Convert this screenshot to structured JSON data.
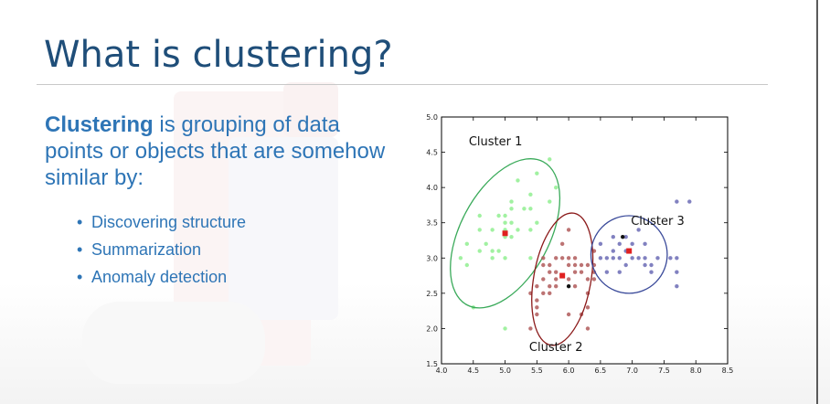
{
  "slide": {
    "title": "What is clustering?",
    "intro_bold": "Clustering",
    "intro_rest": " is grouping of data points or objects that are somehow similar by:",
    "bullets": [
      {
        "symbol": "•",
        "text": "Discovering structure"
      },
      {
        "symbol": "•",
        "text": "Summarization"
      },
      {
        "symbol": "•",
        "text": "Anomaly detection"
      }
    ]
  },
  "colors": {
    "title": "#1f4e79",
    "body_text": "#2e75b6",
    "cluster1_points": "#90ee90",
    "cluster2_points": "#b05a5a",
    "cluster3_points": "#6b6bb5",
    "cluster1_ellipse": "#3aaa5a",
    "cluster2_ellipse": "#8b1a1a",
    "cluster3_ellipse": "#3a4a9a",
    "centroid": "#e02020"
  },
  "chart_data": {
    "type": "scatter",
    "xlim": [
      4.0,
      8.5
    ],
    "ylim": [
      1.5,
      5.0
    ],
    "x_ticks": [
      "4.0",
      "4.5",
      "5.0",
      "5.5",
      "6.0",
      "6.5",
      "7.0",
      "7.5",
      "8.0",
      "8.5"
    ],
    "y_ticks": [
      "1.5",
      "2.0",
      "2.5",
      "3.0",
      "3.5",
      "4.0",
      "4.5",
      "5.0"
    ],
    "grid": false,
    "clusters": [
      {
        "name": "Cluster 1",
        "color": "#90ee90",
        "centroid": [
          5.0,
          3.35
        ],
        "label_at": [
          4.85,
          4.6
        ],
        "ellipse": {
          "cx": 5.0,
          "cy": 3.35,
          "rx": 0.7,
          "ry": 1.15,
          "rotate_deg": 28
        },
        "points": [
          [
            4.3,
            3.0
          ],
          [
            4.4,
            2.9
          ],
          [
            4.4,
            3.2
          ],
          [
            4.5,
            2.3
          ],
          [
            4.6,
            3.1
          ],
          [
            4.6,
            3.4
          ],
          [
            4.6,
            3.6
          ],
          [
            4.7,
            3.2
          ],
          [
            4.8,
            3.0
          ],
          [
            4.8,
            3.4
          ],
          [
            4.8,
            3.1
          ],
          [
            4.9,
            3.1
          ],
          [
            4.9,
            3.6
          ],
          [
            5.0,
            3.0
          ],
          [
            5.0,
            3.4
          ],
          [
            5.0,
            3.5
          ],
          [
            5.0,
            3.6
          ],
          [
            5.0,
            3.3
          ],
          [
            5.1,
            3.5
          ],
          [
            5.1,
            3.8
          ],
          [
            5.1,
            3.7
          ],
          [
            5.1,
            3.3
          ],
          [
            5.2,
            3.4
          ],
          [
            5.2,
            4.1
          ],
          [
            5.3,
            3.7
          ],
          [
            5.4,
            3.9
          ],
          [
            5.4,
            3.4
          ],
          [
            5.4,
            3.7
          ],
          [
            5.5,
            3.5
          ],
          [
            5.5,
            4.2
          ],
          [
            5.7,
            3.8
          ],
          [
            5.7,
            4.4
          ],
          [
            5.8,
            4.0
          ],
          [
            5.0,
            2.0
          ],
          [
            5.4,
            3.0
          ]
        ]
      },
      {
        "name": "Cluster 2",
        "color": "#b05a5a",
        "centroid": [
          5.9,
          2.75
        ],
        "label_at": [
          5.8,
          1.68
        ],
        "ellipse": {
          "cx": 5.9,
          "cy": 2.7,
          "rx": 0.45,
          "ry": 0.95,
          "rotate_deg": 10
        },
        "points": [
          [
            5.4,
            2.5
          ],
          [
            5.5,
            2.3
          ],
          [
            5.5,
            2.6
          ],
          [
            5.5,
            2.4
          ],
          [
            5.6,
            2.9
          ],
          [
            5.6,
            2.5
          ],
          [
            5.6,
            3.0
          ],
          [
            5.6,
            2.7
          ],
          [
            5.7,
            2.8
          ],
          [
            5.7,
            2.6
          ],
          [
            5.7,
            2.9
          ],
          [
            5.7,
            2.5
          ],
          [
            5.8,
            2.7
          ],
          [
            5.8,
            2.6
          ],
          [
            5.8,
            2.8
          ],
          [
            5.8,
            3.0
          ],
          [
            5.9,
            3.0
          ],
          [
            5.9,
            3.2
          ],
          [
            6.0,
            2.2
          ],
          [
            6.0,
            2.9
          ],
          [
            6.0,
            2.7
          ],
          [
            6.0,
            3.0
          ],
          [
            6.0,
            3.4
          ],
          [
            6.1,
            2.8
          ],
          [
            6.1,
            3.0
          ],
          [
            6.1,
            2.6
          ],
          [
            6.2,
            2.2
          ],
          [
            6.2,
            2.9
          ],
          [
            6.2,
            2.8
          ],
          [
            6.3,
            2.5
          ],
          [
            6.3,
            2.3
          ],
          [
            6.3,
            2.7
          ],
          [
            6.3,
            2.9
          ],
          [
            6.4,
            2.7
          ],
          [
            6.4,
            2.8
          ],
          [
            6.4,
            3.1
          ],
          [
            6.4,
            2.9
          ],
          [
            5.4,
            2.0
          ],
          [
            5.5,
            2.2
          ],
          [
            6.1,
            2.9
          ],
          [
            6.3,
            2.0
          ]
        ]
      },
      {
        "name": "Cluster 3",
        "color": "#6b6bb5",
        "centroid": [
          6.95,
          3.1
        ],
        "label_at": [
          7.4,
          3.47
        ],
        "ellipse": {
          "cx": 6.95,
          "cy": 3.05,
          "rx": 0.6,
          "ry": 0.55,
          "rotate_deg": 0
        },
        "points": [
          [
            6.5,
            3.0
          ],
          [
            6.5,
            3.2
          ],
          [
            6.6,
            3.0
          ],
          [
            6.7,
            3.1
          ],
          [
            6.7,
            3.3
          ],
          [
            6.7,
            3.0
          ],
          [
            6.8,
            3.2
          ],
          [
            6.8,
            2.8
          ],
          [
            6.9,
            3.1
          ],
          [
            6.9,
            2.9
          ],
          [
            7.0,
            3.2
          ],
          [
            7.0,
            3.0
          ],
          [
            7.1,
            3.0
          ],
          [
            7.2,
            3.2
          ],
          [
            7.2,
            2.9
          ],
          [
            7.2,
            3.0
          ],
          [
            7.3,
            2.8
          ],
          [
            7.3,
            2.9
          ],
          [
            7.4,
            3.0
          ],
          [
            7.6,
            3.0
          ],
          [
            7.7,
            2.6
          ],
          [
            7.7,
            2.8
          ],
          [
            7.7,
            3.0
          ],
          [
            7.9,
            3.8
          ],
          [
            7.7,
            3.8
          ],
          [
            6.9,
            3.3
          ],
          [
            6.6,
            2.8
          ],
          [
            6.8,
            3.0
          ],
          [
            7.1,
            3.4
          ]
        ]
      }
    ],
    "highlight_points": [
      [
        6.0,
        2.6
      ],
      [
        6.85,
        3.3
      ]
    ]
  }
}
